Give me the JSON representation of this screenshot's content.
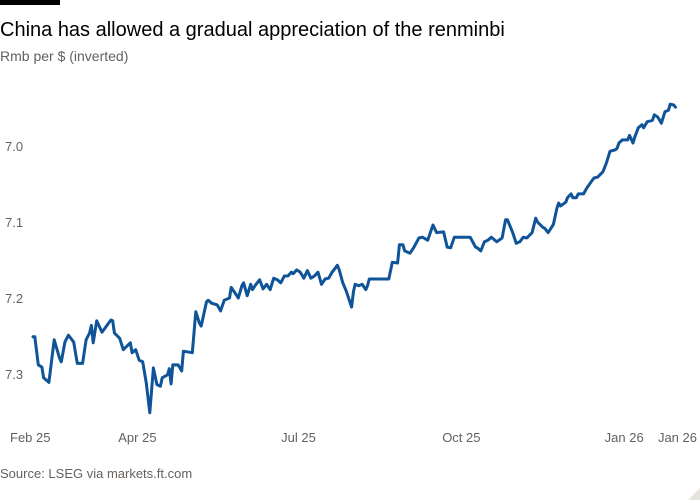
{
  "title": "China has allowed a gradual appreciation of the renminbi",
  "subtitle": "Rmb per $ (inverted)",
  "source": "Source: LSEG via markets.ft.com",
  "colors": {
    "line": "#0f5499",
    "text": "#66605c"
  },
  "chart_data": {
    "type": "line",
    "title": "China has allowed a gradual appreciation of the renminbi",
    "ylabel": "Rmb per $ (inverted)",
    "xlabel": "",
    "x_unit": "days since 2025-02-01",
    "y_inverted": true,
    "ylim": [
      6.94,
      7.36
    ],
    "yticks": [
      {
        "value": 7.0,
        "label": "7.0"
      },
      {
        "value": 7.1,
        "label": "7.1"
      },
      {
        "value": 7.2,
        "label": "7.2"
      },
      {
        "value": 7.3,
        "label": "7.3"
      }
    ],
    "xticks": [
      {
        "value": 0,
        "label": "Feb 25"
      },
      {
        "value": 59,
        "label": "Apr 25"
      },
      {
        "value": 150,
        "label": "Jul 25"
      },
      {
        "value": 242,
        "label": "Oct 25"
      },
      {
        "value": 334,
        "label": "Jan 26"
      },
      {
        "value": 363,
        "label": "Jan 26"
      }
    ],
    "grid": false,
    "series": [
      {
        "name": "Rmb per $",
        "points": [
          [
            0,
            7.251
          ],
          [
            1,
            7.251
          ],
          [
            3,
            7.288
          ],
          [
            5,
            7.291
          ],
          [
            6,
            7.305
          ],
          [
            9,
            7.311
          ],
          [
            12,
            7.255
          ],
          [
            15,
            7.279
          ],
          [
            16,
            7.284
          ],
          [
            18,
            7.258
          ],
          [
            20,
            7.249
          ],
          [
            23,
            7.258
          ],
          [
            25,
            7.286
          ],
          [
            28,
            7.286
          ],
          [
            30,
            7.255
          ],
          [
            32,
            7.246
          ],
          [
            33,
            7.236
          ],
          [
            34,
            7.259
          ],
          [
            36,
            7.23
          ],
          [
            39,
            7.245
          ],
          [
            44,
            7.229
          ],
          [
            45,
            7.23
          ],
          [
            46,
            7.246
          ],
          [
            49,
            7.253
          ],
          [
            51,
            7.268
          ],
          [
            55,
            7.259
          ],
          [
            56,
            7.272
          ],
          [
            58,
            7.268
          ],
          [
            60,
            7.282
          ],
          [
            62,
            7.284
          ],
          [
            64,
            7.312
          ],
          [
            66,
            7.351
          ],
          [
            68,
            7.292
          ],
          [
            70,
            7.314
          ],
          [
            72,
            7.316
          ],
          [
            73,
            7.305
          ],
          [
            76,
            7.301
          ],
          [
            77,
            7.293
          ],
          [
            78,
            7.313
          ],
          [
            79,
            7.288
          ],
          [
            82,
            7.288
          ],
          [
            84,
            7.296
          ],
          [
            85,
            7.27
          ],
          [
            90,
            7.272
          ],
          [
            92,
            7.218
          ],
          [
            94,
            7.233
          ],
          [
            95,
            7.237
          ],
          [
            98,
            7.205
          ],
          [
            99,
            7.203
          ],
          [
            101,
            7.207
          ],
          [
            104,
            7.209
          ],
          [
            106,
            7.217
          ],
          [
            108,
            7.203
          ],
          [
            111,
            7.2
          ],
          [
            112,
            7.186
          ],
          [
            114,
            7.193
          ],
          [
            116,
            7.2
          ],
          [
            118,
            7.184
          ],
          [
            119,
            7.18
          ],
          [
            121,
            7.197
          ],
          [
            123,
            7.182
          ],
          [
            124,
            7.189
          ],
          [
            126,
            7.182
          ],
          [
            128,
            7.176
          ],
          [
            130,
            7.188
          ],
          [
            132,
            7.182
          ],
          [
            134,
            7.189
          ],
          [
            136,
            7.174
          ],
          [
            138,
            7.176
          ],
          [
            140,
            7.18
          ],
          [
            142,
            7.171
          ],
          [
            144,
            7.171
          ],
          [
            146,
            7.166
          ],
          [
            147,
            7.168
          ],
          [
            149,
            7.163
          ],
          [
            151,
            7.166
          ],
          [
            153,
            7.174
          ],
          [
            155,
            7.164
          ],
          [
            157,
            7.174
          ],
          [
            159,
            7.171
          ],
          [
            161,
            7.166
          ],
          [
            163,
            7.182
          ],
          [
            165,
            7.175
          ],
          [
            167,
            7.174
          ],
          [
            169,
            7.166
          ],
          [
            172,
            7.157
          ],
          [
            173,
            7.163
          ],
          [
            175,
            7.18
          ],
          [
            177,
            7.191
          ],
          [
            180,
            7.212
          ],
          [
            181,
            7.192
          ],
          [
            182,
            7.182
          ],
          [
            184,
            7.184
          ],
          [
            186,
            7.182
          ],
          [
            188,
            7.189
          ],
          [
            189,
            7.184
          ],
          [
            190,
            7.175
          ],
          [
            201,
            7.175
          ],
          [
            203,
            7.153
          ],
          [
            206,
            7.154
          ],
          [
            207,
            7.13
          ],
          [
            209,
            7.13
          ],
          [
            210,
            7.138
          ],
          [
            213,
            7.141
          ],
          [
            215,
            7.134
          ],
          [
            218,
            7.121
          ],
          [
            220,
            7.12
          ],
          [
            223,
            7.124
          ],
          [
            226,
            7.104
          ],
          [
            228,
            7.114
          ],
          [
            232,
            7.113
          ],
          [
            234,
            7.133
          ],
          [
            236,
            7.134
          ],
          [
            238,
            7.12
          ],
          [
            247,
            7.12
          ],
          [
            250,
            7.133
          ],
          [
            251,
            7.134
          ],
          [
            253,
            7.138
          ],
          [
            255,
            7.126
          ],
          [
            257,
            7.124
          ],
          [
            259,
            7.12
          ],
          [
            262,
            7.126
          ],
          [
            265,
            7.121
          ],
          [
            267,
            7.097
          ],
          [
            268,
            7.097
          ],
          [
            271,
            7.114
          ],
          [
            273,
            7.128
          ],
          [
            275,
            7.126
          ],
          [
            277,
            7.12
          ],
          [
            279,
            7.121
          ],
          [
            282,
            7.114
          ],
          [
            284,
            7.095
          ],
          [
            285,
            7.1
          ],
          [
            288,
            7.107
          ],
          [
            289,
            7.108
          ],
          [
            291,
            7.114
          ],
          [
            293,
            7.107
          ],
          [
            294,
            7.103
          ],
          [
            296,
            7.082
          ],
          [
            297,
            7.075
          ],
          [
            298,
            7.079
          ],
          [
            301,
            7.074
          ],
          [
            302,
            7.068
          ],
          [
            304,
            7.063
          ],
          [
            305,
            7.068
          ],
          [
            307,
            7.068
          ],
          [
            308,
            7.063
          ],
          [
            311,
            7.063
          ],
          [
            313,
            7.055
          ],
          [
            316,
            7.045
          ],
          [
            317,
            7.042
          ],
          [
            319,
            7.041
          ],
          [
            322,
            7.034
          ],
          [
            324,
            7.022
          ],
          [
            326,
            7.007
          ],
          [
            329,
            7.005
          ],
          [
            330,
            7.003
          ],
          [
            331,
            6.996
          ],
          [
            333,
            6.992
          ],
          [
            336,
            6.992
          ],
          [
            337,
            6.986
          ],
          [
            339,
            6.996
          ],
          [
            340,
            6.988
          ],
          [
            342,
            6.976
          ],
          [
            344,
            6.972
          ],
          [
            345,
            6.976
          ],
          [
            347,
            6.968
          ],
          [
            349,
            6.967
          ],
          [
            350,
            6.966
          ],
          [
            351,
            6.959
          ],
          [
            353,
            6.962
          ],
          [
            355,
            6.97
          ],
          [
            357,
            6.955
          ],
          [
            359,
            6.953
          ],
          [
            360,
            6.945
          ],
          [
            362,
            6.946
          ],
          [
            363,
            6.949
          ]
        ]
      }
    ]
  }
}
